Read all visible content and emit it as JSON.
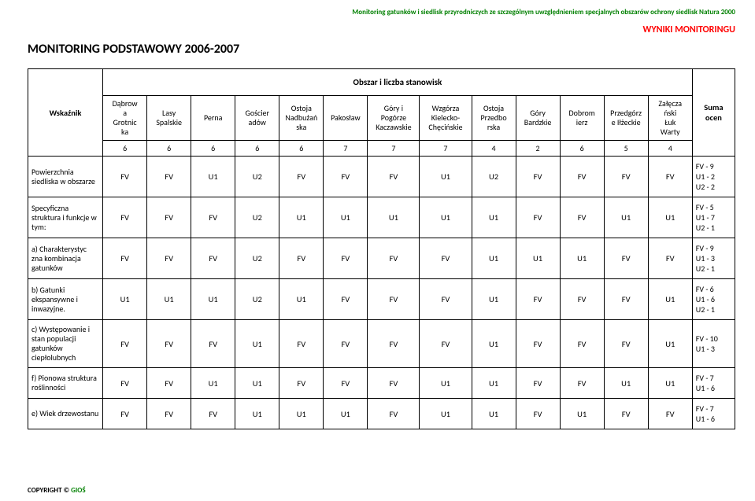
{
  "header_green": "Monitoring gatunków i siedlisk przyrodniczych ze szczególnym uwzględnieniem specjalnych obszarów ochrony siedlisk Natura 2000",
  "header_red": "WYNIKI MONITORINGU",
  "title": "MONITORING PODSTAWOWY 2006-2007",
  "obszar_header": "Obszar i liczba stanowisk",
  "wskaznik_header": "Wskaźnik",
  "suma_header": "Suma ocen",
  "areas": [
    {
      "name": "Dąbrow\na\nGrotnic\nka",
      "count": "6"
    },
    {
      "name": "Lasy\nSpalskie",
      "count": "6"
    },
    {
      "name": "Perna",
      "count": "6"
    },
    {
      "name": "Gościer\nadów",
      "count": "6"
    },
    {
      "name": "Ostoja\nNadbużań\nska",
      "count": "6"
    },
    {
      "name": "Pakosław",
      "count": "7"
    },
    {
      "name": "Góry i\nPogórze\nKaczawskie",
      "count": "7"
    },
    {
      "name": "Wzgórza\nKielecko-\nChęcińskie",
      "count": "7"
    },
    {
      "name": "Ostoja\nPrzedbo\nrska",
      "count": "4"
    },
    {
      "name": "Góry\nBardzkie",
      "count": "2"
    },
    {
      "name": "Dobrom\nierz",
      "count": "6"
    },
    {
      "name": "Przedgórz\ne Iłżeckie",
      "count": "5"
    },
    {
      "name": "Załęcza\nński\nŁuk\nWarty",
      "count": "4"
    }
  ],
  "rows": [
    {
      "label": "Powierzchnia siedliska w obszarze",
      "vals": [
        "FV",
        "FV",
        "U1",
        "U2",
        "FV",
        "FV",
        "FV",
        "U1",
        "U2",
        "FV",
        "FV",
        "FV",
        "FV"
      ],
      "suma": "FV - 9\nU1 - 2\nU2 - 2"
    },
    {
      "label": "Specyficzna struktura i funkcje w tym:",
      "vals": [
        "FV",
        "FV",
        "FV",
        "U2",
        "U1",
        "U1",
        "U1",
        "U1",
        "U1",
        "FV",
        "FV",
        "U1",
        "U1"
      ],
      "suma": "FV - 5\nU1 - 7\nU2 - 1"
    },
    {
      "label": "a) Charakterystyc zna kombinacja gatunków",
      "vals": [
        "FV",
        "FV",
        "FV",
        "U2",
        "FV",
        "FV",
        "FV",
        "FV",
        "U1",
        "U1",
        "U1",
        "FV",
        "FV"
      ],
      "suma": "FV - 9\nU1 - 3\nU2 - 1"
    },
    {
      "label": "b) Gatunki ekspansywne i inwazyjne.",
      "vals": [
        "U1",
        "U1",
        "U1",
        "U2",
        "U1",
        "FV",
        "FV",
        "FV",
        "U1",
        "FV",
        "FV",
        "FV",
        "U1"
      ],
      "suma": "FV - 6\nU1 - 6\nU2 - 1"
    },
    {
      "label": "c) Występowanie i stan populacji gatunków ciepłolubnych",
      "vals": [
        "FV",
        "FV",
        "FV",
        "U1",
        "FV",
        "FV",
        "FV",
        "FV",
        "U1",
        "FV",
        "FV",
        "FV",
        "U1"
      ],
      "suma": "FV - 10\nU1 - 3"
    },
    {
      "label": "f) Pionowa struktura roślinności",
      "vals": [
        "FV",
        "FV",
        "U1",
        "U1",
        "FV",
        "FV",
        "FV",
        "U1",
        "U1",
        "FV",
        "FV",
        "U1",
        "U1"
      ],
      "suma": "FV - 7\nU1 - 6"
    },
    {
      "label": "e) Wiek drzewostanu",
      "vals": [
        "FV",
        "FV",
        "FV",
        "U1",
        "U1",
        "U1",
        "FV",
        "U1",
        "U1",
        "FV",
        "U1",
        "FV",
        "FV"
      ],
      "suma": "FV - 7\nU1 - 6"
    }
  ],
  "footer_copyright": "COPYRIGHT © ",
  "footer_org": "GIOŚ",
  "colors": {
    "green": "#008000",
    "red": "#ff0000",
    "black": "#000000",
    "background": "#ffffff",
    "border": "#000000"
  },
  "fonts": {
    "header_green_size": 9,
    "header_red_size": 12,
    "title_size": 16,
    "table_size": 10.5,
    "label_size": 10,
    "footer_size": 9
  }
}
